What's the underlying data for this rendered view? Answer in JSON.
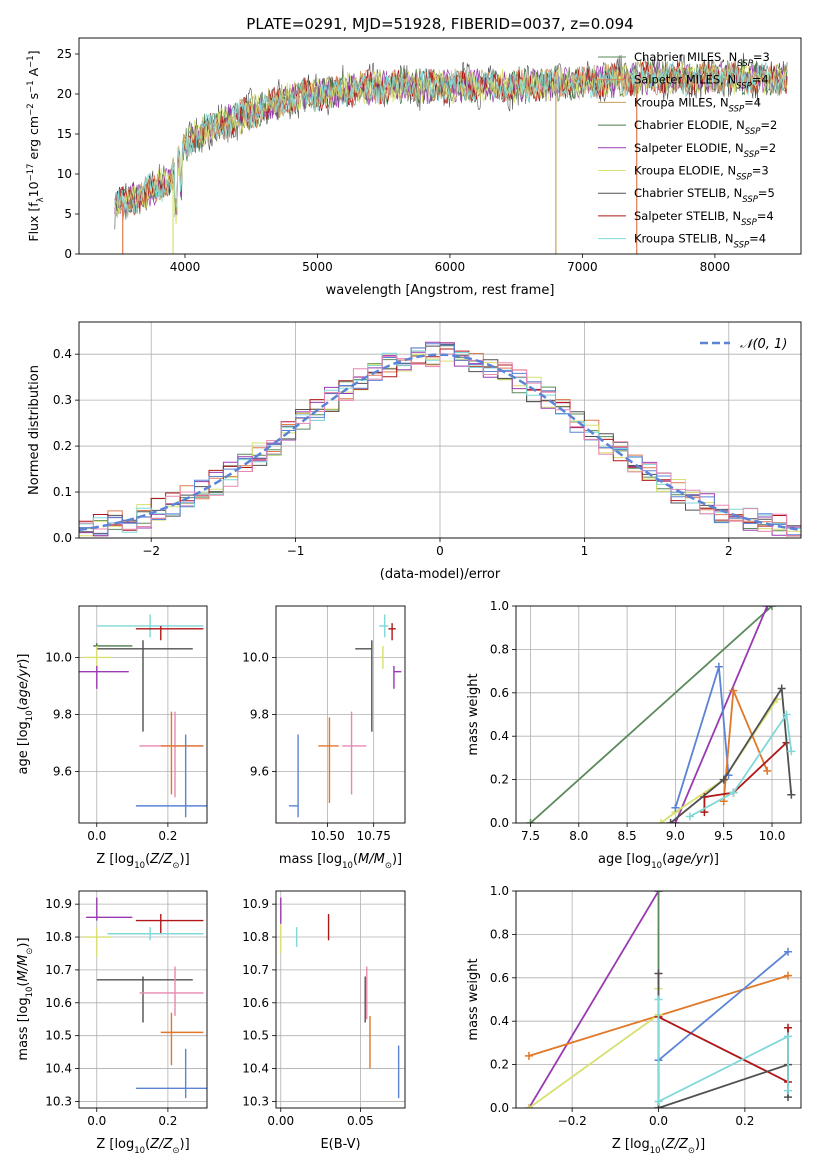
{
  "figure": {
    "title": "PLATE=0291, MJD=51928, FIBERID=0037, z=0.094",
    "colors": {
      "Chabrier MILES": "#5a8a5a",
      "Salpeter MILES": "#e07a50",
      "Kroupa MILES": "#c8a060",
      "Chabrier ELODIE": "#4a7a4a",
      "Salpeter ELODIE": "#9a3ab0",
      "Kroupa ELODIE": "#d8e070",
      "Chabrier STELIB": "#505050",
      "Salpeter STELIB": "#b01818",
      "Kroupa STELIB": "#80d8d8",
      "blue": "#5b84d6",
      "orange": "#e07828",
      "pink": "#e888b0",
      "lime": "#c8e858"
    }
  },
  "chart_data": [
    {
      "id": "spectrum",
      "type": "line",
      "xlabel": "wavelength [Angstrom, rest frame]",
      "ylabel": "Flux [f$_\\lambda$10$^{-17}$ erg cm$^{-2}$ s$^{-1}$ A$^{-1}$]",
      "xlim": [
        3200,
        8650
      ],
      "ylim": [
        0,
        27
      ],
      "xticks": [
        4000,
        5000,
        6000,
        7000,
        8000
      ],
      "yticks": [
        0,
        5,
        10,
        15,
        20,
        25
      ],
      "x_range": [
        3470,
        8550
      ],
      "continuum_knots": {
        "x": [
          3470,
          3700,
          3900,
          4000,
          4100,
          4400,
          4800,
          5200,
          5600,
          6000,
          6500,
          7000,
          7500,
          8000,
          8550
        ],
        "y": [
          6,
          7.5,
          9.5,
          13.5,
          15,
          17,
          19.5,
          20.5,
          21,
          21,
          21,
          21.5,
          22,
          22,
          22
        ]
      },
      "legend": [
        {
          "label": "Chabrier MILES",
          "nssp": "3"
        },
        {
          "label": "Salpeter MILES",
          "nssp": "4"
        },
        {
          "label": "Kroupa MILES",
          "nssp": "4"
        },
        {
          "label": "Chabrier ELODIE",
          "nssp": "2"
        },
        {
          "label": "Salpeter ELODIE",
          "nssp": "2"
        },
        {
          "label": "Kroupa ELODIE",
          "nssp": "3"
        },
        {
          "label": "Chabrier STELIB",
          "nssp": "5"
        },
        {
          "label": "Salpeter STELIB",
          "nssp": "4"
        },
        {
          "label": "Kroupa STELIB",
          "nssp": "4"
        }
      ],
      "legend_subscript": "SSP",
      "legend_position": "upper right",
      "grid": false
    },
    {
      "id": "residuals",
      "type": "histogram",
      "xlabel": "(data-model)/error",
      "ylabel": "Normed distribution",
      "xlim": [
        -2.5,
        2.5
      ],
      "ylim": [
        0,
        0.47
      ],
      "xticks": [
        -2,
        -1,
        0,
        1,
        2
      ],
      "yticks": [
        0.0,
        0.1,
        0.2,
        0.3,
        0.4
      ],
      "bin_width": 0.1,
      "legend": [
        "𝒩(0, 1)"
      ],
      "legend_position": "upper right",
      "grid": true
    },
    {
      "id": "age_vs_Z",
      "type": "scatter",
      "xlabel": "Z [log10(Z/Z⊙)]",
      "ylabel": "age [log10(age/yr)]",
      "xlim": [
        -0.05,
        0.31
      ],
      "ylim": [
        9.42,
        10.18
      ],
      "xticks": [
        0.0,
        0.2
      ],
      "yticks": [
        9.6,
        9.8,
        10.0
      ],
      "points": [
        {
          "series": "Kroupa STELIB",
          "x": 0.15,
          "y": 10.11,
          "xerr": [
            0.15,
            0.15
          ],
          "yerr": [
            0.04,
            0.04
          ]
        },
        {
          "series": "Salpeter STELIB",
          "x": 0.18,
          "y": 10.1,
          "xerr": [
            0.07,
            0.12
          ],
          "yerr": [
            0.04,
            0.01
          ]
        },
        {
          "series": "Chabrier STELIB",
          "x": 0.13,
          "y": 10.03,
          "xerr": [
            0.13,
            0.14
          ],
          "yerr": [
            0.29,
            0.03
          ]
        },
        {
          "series": "Chabrier ELODIE",
          "x": 0.0,
          "y": 10.04,
          "xerr": [
            0.01,
            0.1
          ],
          "yerr": [
            0.01,
            0.01
          ]
        },
        {
          "series": "Kroupa ELODIE",
          "x": 0.0,
          "y": 10.0,
          "xerr": [
            0.04,
            0.04
          ],
          "yerr": [
            0.04,
            0.04
          ]
        },
        {
          "series": "Salpeter ELODIE",
          "x": 0.0,
          "y": 9.95,
          "xerr": [
            0.05,
            0.09
          ],
          "yerr": [
            0.06,
            0.02
          ]
        },
        {
          "series": "pink",
          "x": 0.22,
          "y": 9.69,
          "xerr": [
            0.1,
            0.08
          ],
          "yerr": [
            0.18,
            0.12
          ]
        },
        {
          "series": "orange",
          "x": 0.21,
          "y": 9.69,
          "xerr": [
            0.03,
            0.09
          ],
          "yerr": [
            0.17,
            0.12
          ]
        },
        {
          "series": "blue",
          "x": 0.25,
          "y": 9.48,
          "xerr": [
            0.14,
            0.06
          ],
          "yerr": [
            0.04,
            0.25
          ]
        }
      ],
      "grid": true
    },
    {
      "id": "age_vs_mass",
      "type": "scatter",
      "xlabel": "mass [log10(M/M⊙)]",
      "ylabel": "",
      "xlim": [
        10.22,
        10.92
      ],
      "ylim": [
        9.42,
        10.18
      ],
      "xticks": [
        10.5,
        10.75
      ],
      "yticks": [
        9.6,
        9.8,
        10.0
      ],
      "points": [
        {
          "series": "Kroupa STELIB",
          "x": 10.81,
          "y": 10.11,
          "xerr": [
            0.03,
            0.02
          ],
          "yerr": [
            0.04,
            0.04
          ]
        },
        {
          "series": "Salpeter STELIB",
          "x": 10.85,
          "y": 10.1,
          "xerr": [
            0.02,
            0.02
          ],
          "yerr": [
            0.04,
            0.02
          ]
        },
        {
          "series": "Chabrier STELIB",
          "x": 10.74,
          "y": 10.03,
          "xerr": [
            0.09,
            0.0
          ],
          "yerr": [
            0.29,
            0.03
          ]
        },
        {
          "series": "Kroupa ELODIE",
          "x": 10.8,
          "y": 10.0,
          "xerr": [
            0.02,
            0.0
          ],
          "yerr": [
            0.04,
            0.04
          ]
        },
        {
          "series": "Salpeter ELODIE",
          "x": 10.86,
          "y": 9.95,
          "xerr": [
            0.0,
            0.04
          ],
          "yerr": [
            0.06,
            0.02
          ]
        },
        {
          "series": "pink",
          "x": 10.63,
          "y": 9.69,
          "xerr": [
            0.05,
            0.08
          ],
          "yerr": [
            0.17,
            0.12
          ]
        },
        {
          "series": "orange",
          "x": 10.51,
          "y": 9.69,
          "xerr": [
            0.06,
            0.05
          ],
          "yerr": [
            0.2,
            0.1
          ]
        },
        {
          "series": "blue",
          "x": 10.34,
          "y": 9.48,
          "xerr": [
            0.05,
            0.0
          ],
          "yerr": [
            0.04,
            0.25
          ]
        }
      ],
      "grid": true
    },
    {
      "id": "massweight_vs_age",
      "type": "line",
      "xlabel": "age [log10(age/yr)]",
      "ylabel": "mass weight",
      "xlim": [
        7.35,
        10.3
      ],
      "ylim": [
        0,
        1
      ],
      "xticks": [
        7.5,
        8.0,
        8.5,
        9.0,
        9.5,
        10.0
      ],
      "yticks": [
        0.0,
        0.2,
        0.4,
        0.6,
        0.8,
        1.0
      ],
      "series": [
        {
          "name": "Chabrier MILES",
          "x": [
            7.5,
            10.0
          ],
          "y": [
            0.0,
            1.0
          ]
        },
        {
          "name": "Salpeter ELODIE",
          "x": [
            9.0,
            9.95
          ],
          "y": [
            0.0,
            1.0
          ]
        },
        {
          "name": "Kroupa ELODIE",
          "x": [
            8.85,
            9.0,
            9.5,
            10.05
          ],
          "y": [
            0.0,
            0.05,
            0.2,
            0.57
          ]
        },
        {
          "name": "blue",
          "x": [
            9.0,
            9.45,
            9.55
          ],
          "y": [
            0.07,
            0.72,
            0.22
          ]
        },
        {
          "name": "orange",
          "x": [
            9.5,
            9.6,
            9.95
          ],
          "y": [
            0.1,
            0.61,
            0.24
          ]
        },
        {
          "name": "Salpeter STELIB",
          "x": [
            9.3,
            9.3,
            9.6,
            10.15
          ],
          "y": [
            0.05,
            0.12,
            0.14,
            0.37
          ]
        },
        {
          "name": "Chabrier STELIB",
          "x": [
            8.95,
            9.5,
            10.1,
            10.2
          ],
          "y": [
            0.0,
            0.2,
            0.62,
            0.13
          ]
        },
        {
          "name": "Kroupa STELIB",
          "x": [
            9.15,
            9.6,
            10.15,
            10.2
          ],
          "y": [
            0.03,
            0.14,
            0.5,
            0.33
          ]
        }
      ],
      "grid": true
    },
    {
      "id": "mass_vs_Z",
      "type": "scatter",
      "xlabel": "Z [log10(Z/Z⊙)]",
      "ylabel": "mass [log10(M/M⊙)]",
      "xlim": [
        -0.05,
        0.31
      ],
      "ylim": [
        10.28,
        10.94
      ],
      "xticks": [
        0.0,
        0.2
      ],
      "yticks": [
        10.3,
        10.4,
        10.5,
        10.6,
        10.7,
        10.8,
        10.9
      ],
      "points": [
        {
          "series": "Salpeter ELODIE",
          "x": 0.0,
          "y": 10.86,
          "xerr": [
            0.03,
            0.1
          ],
          "yerr": [
            0.01,
            0.06
          ]
        },
        {
          "series": "Salpeter STELIB",
          "x": 0.18,
          "y": 10.85,
          "xerr": [
            0.07,
            0.12
          ],
          "yerr": [
            0.04,
            0.02
          ]
        },
        {
          "series": "Kroupa STELIB",
          "x": 0.15,
          "y": 10.81,
          "xerr": [
            0.12,
            0.15
          ],
          "yerr": [
            0.02,
            0.02
          ]
        },
        {
          "series": "Kroupa ELODIE",
          "x": 0.0,
          "y": 10.8,
          "xerr": [
            0.04,
            0.04
          ],
          "yerr": [
            0.06,
            0.03
          ]
        },
        {
          "series": "Chabrier STELIB",
          "x": 0.13,
          "y": 10.67,
          "xerr": [
            0.13,
            0.14
          ],
          "yerr": [
            0.13,
            0.01
          ]
        },
        {
          "series": "pink",
          "x": 0.22,
          "y": 10.63,
          "xerr": [
            0.1,
            0.08
          ],
          "yerr": [
            0.07,
            0.08
          ]
        },
        {
          "series": "orange",
          "x": 0.21,
          "y": 10.51,
          "xerr": [
            0.03,
            0.09
          ],
          "yerr": [
            0.1,
            0.06
          ]
        },
        {
          "series": "blue",
          "x": 0.25,
          "y": 10.34,
          "xerr": [
            0.14,
            0.06
          ],
          "yerr": [
            0.03,
            0.12
          ]
        }
      ],
      "grid": true
    },
    {
      "id": "mass_vs_EBV",
      "type": "scatter",
      "xlabel": "E(B-V)",
      "ylabel": "",
      "xlim": [
        -0.003,
        0.078
      ],
      "ylim": [
        10.28,
        10.94
      ],
      "xticks": [
        0.0,
        0.05
      ],
      "yticks": [
        10.3,
        10.4,
        10.5,
        10.6,
        10.7,
        10.8,
        10.9
      ],
      "points": [
        {
          "series": "Salpeter ELODIE",
          "x": 0.0,
          "y": 10.86,
          "yerr": [
            0.02,
            0.06
          ]
        },
        {
          "series": "Kroupa ELODIE",
          "x": 0.0,
          "y": 10.8,
          "yerr": [
            0.05,
            0.04
          ]
        },
        {
          "series": "Kroupa STELIB",
          "x": 0.01,
          "y": 10.8,
          "yerr": [
            0.03,
            0.03
          ]
        },
        {
          "series": "Salpeter STELIB",
          "x": 0.03,
          "y": 10.84,
          "yerr": [
            0.05,
            0.03
          ]
        },
        {
          "series": "Chabrier STELIB",
          "x": 0.053,
          "y": 10.61,
          "yerr": [
            0.07,
            0.07
          ]
        },
        {
          "series": "pink",
          "x": 0.054,
          "y": 10.63,
          "yerr": [
            0.08,
            0.08
          ]
        },
        {
          "series": "orange",
          "x": 0.056,
          "y": 10.5,
          "yerr": [
            0.1,
            0.06
          ]
        },
        {
          "series": "blue",
          "x": 0.074,
          "y": 10.39,
          "yerr": [
            0.08,
            0.08
          ]
        }
      ],
      "grid": true
    },
    {
      "id": "massweight_vs_Z",
      "type": "line",
      "xlabel": "Z [log10(Z/Z⊙)]",
      "ylabel": "mass weight",
      "xlim": [
        -0.33,
        0.33
      ],
      "ylim": [
        0,
        1
      ],
      "xticks": [
        -0.2,
        0.0,
        0.2
      ],
      "yticks": [
        0.0,
        0.2,
        0.4,
        0.6,
        0.8,
        1.0
      ],
      "series": [
        {
          "name": "Salpeter ELODIE",
          "x": [
            -0.3,
            0.0
          ],
          "y": [
            0.0,
            1.0
          ]
        },
        {
          "name": "Chabrier MILES",
          "x": [
            0.0,
            0.0
          ],
          "y": [
            0.0,
            1.0
          ]
        },
        {
          "name": "orange",
          "x": [
            -0.3,
            0.3
          ],
          "y": [
            0.24,
            0.61
          ]
        },
        {
          "name": "Kroupa ELODIE",
          "x": [
            -0.3,
            0.0,
            0.0
          ],
          "y": [
            0.0,
            0.43,
            0.55
          ]
        },
        {
          "name": "blue",
          "x": [
            0.0,
            0.3
          ],
          "y": [
            0.22,
            0.72
          ]
        },
        {
          "name": "Salpeter STELIB",
          "x": [
            0.0,
            0.3,
            0.3
          ],
          "y": [
            0.42,
            0.12,
            0.37
          ]
        },
        {
          "name": "Chabrier STELIB",
          "x": [
            0.0,
            0.0,
            0.3,
            0.3
          ],
          "y": [
            0.62,
            0.0,
            0.2,
            0.05
          ]
        },
        {
          "name": "Kroupa STELIB",
          "x": [
            0.0,
            0.0,
            0.3,
            0.3
          ],
          "y": [
            0.5,
            0.03,
            0.33,
            0.08
          ]
        }
      ],
      "grid": true
    }
  ]
}
